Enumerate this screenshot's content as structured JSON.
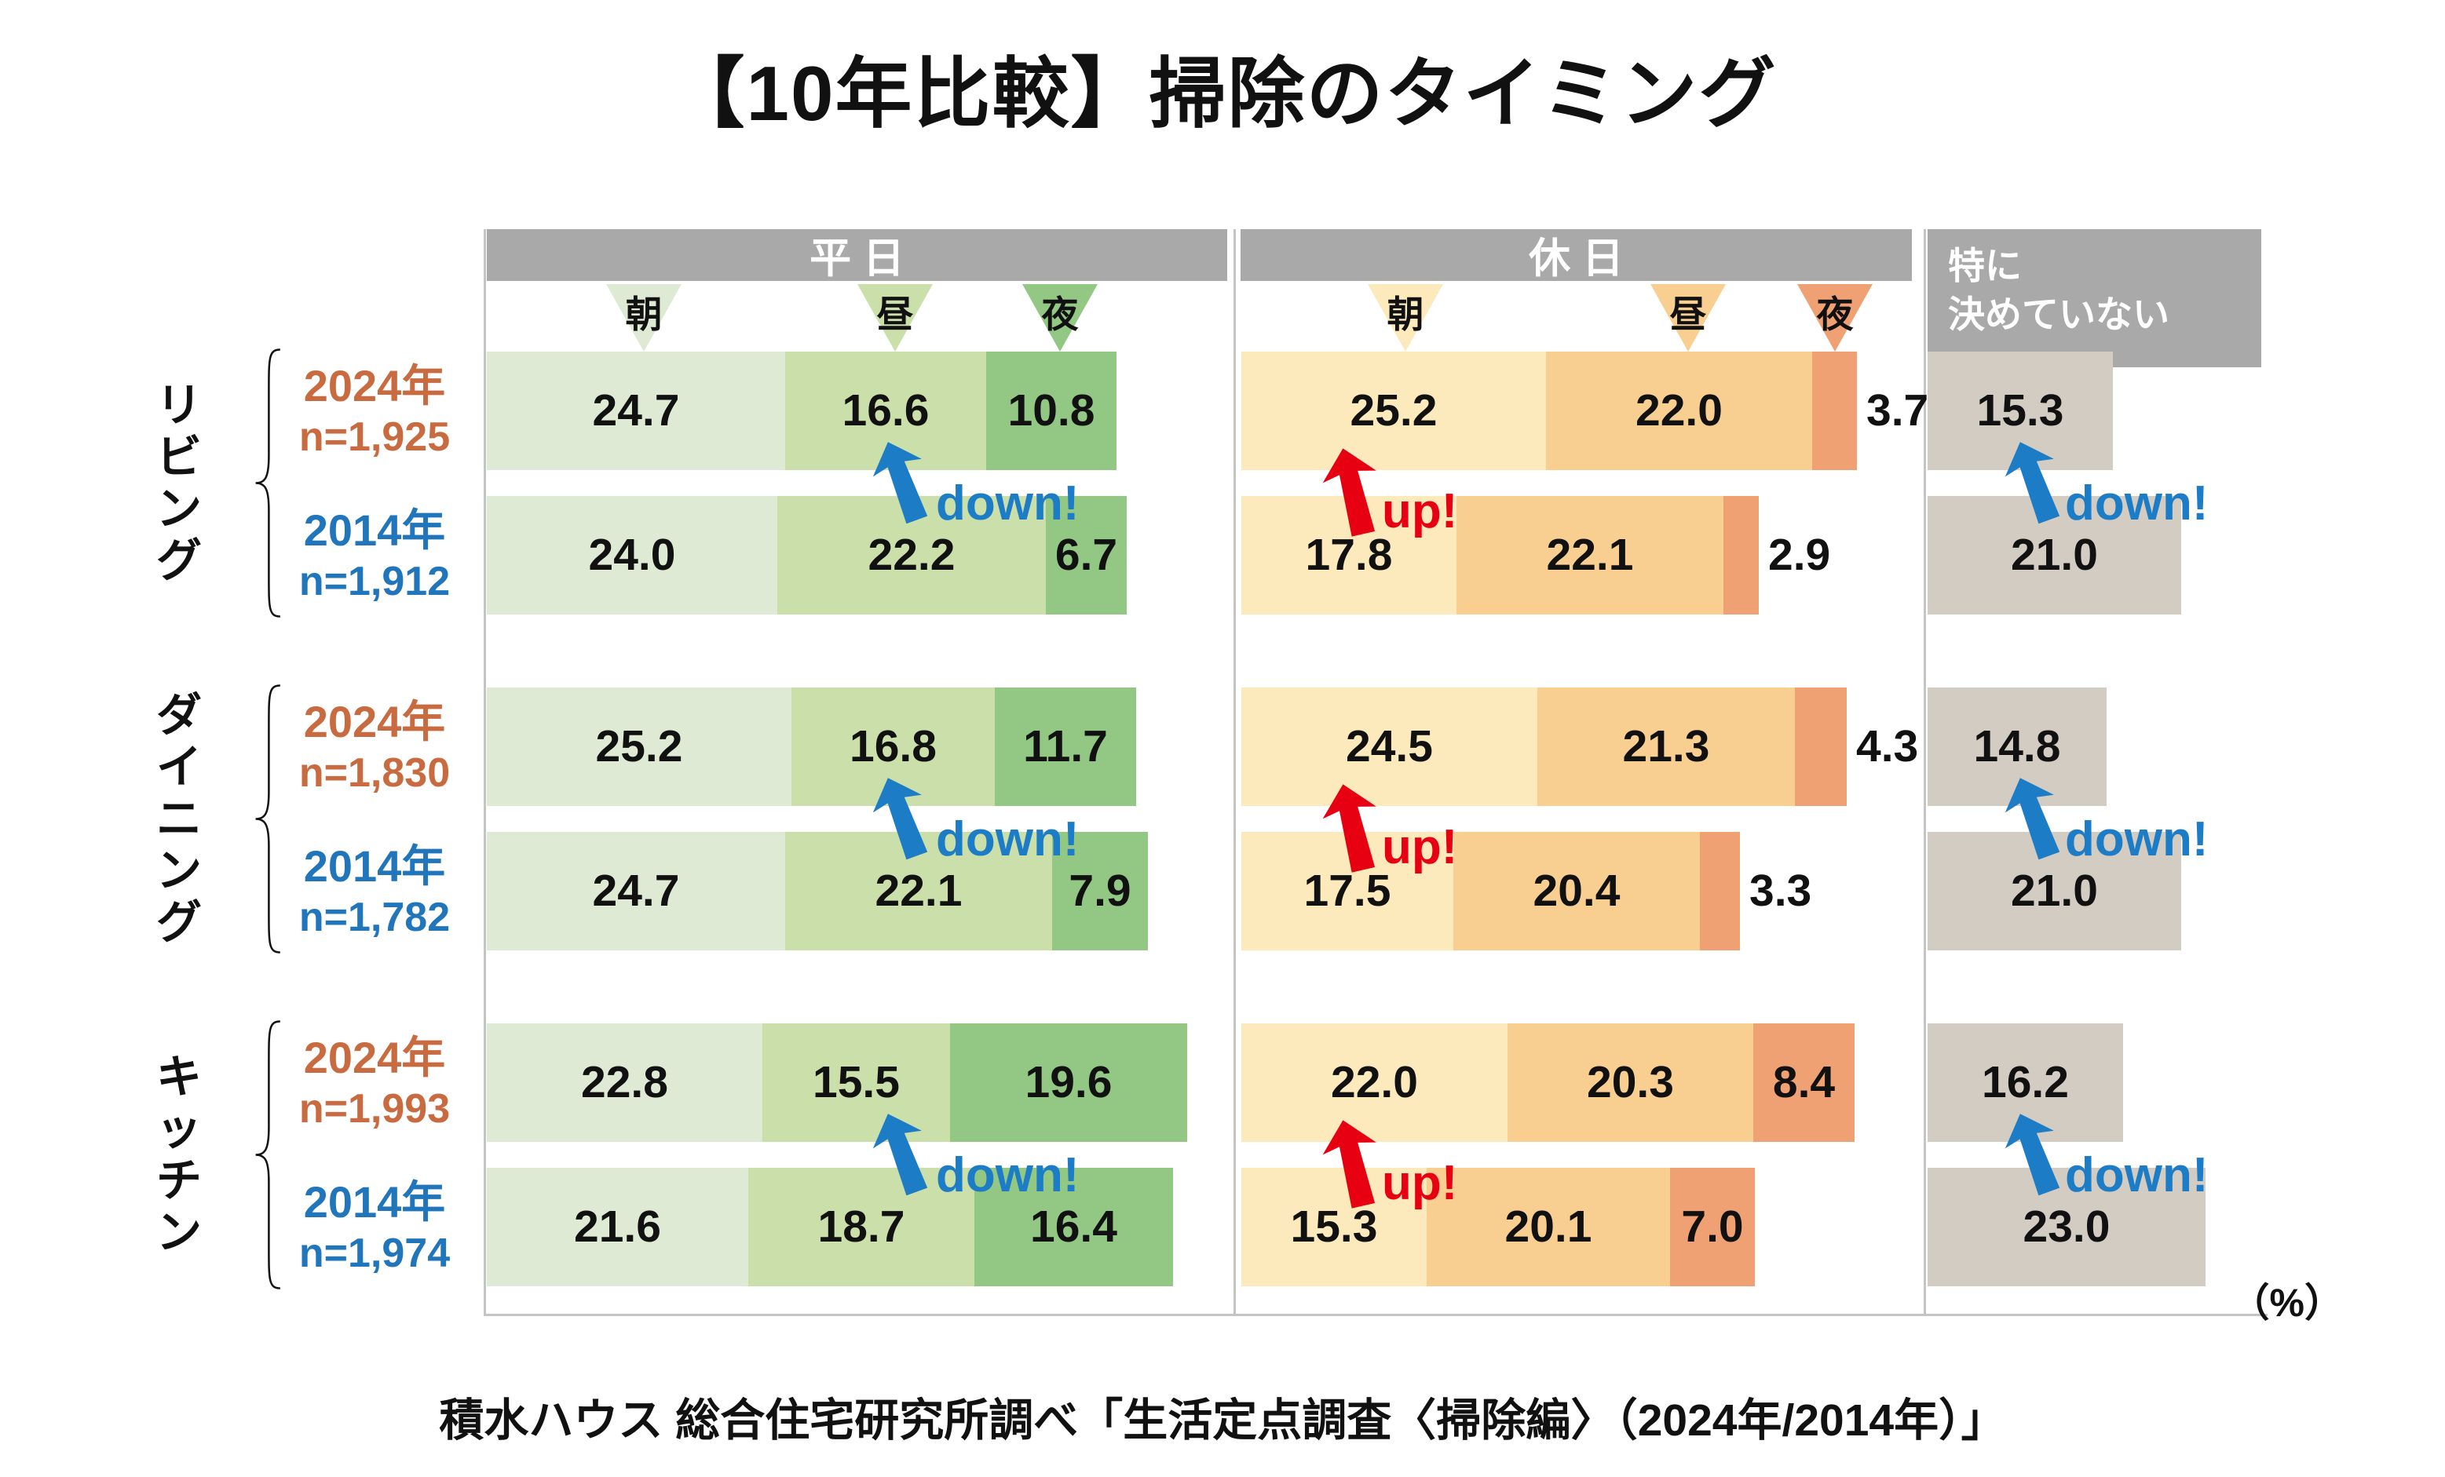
{
  "title": "【10年比較】掃除のタイミング",
  "panels": {
    "weekday": {
      "title": "平 日",
      "times": [
        "朝",
        "昼",
        "夜"
      ]
    },
    "weekend": {
      "title": "休 日",
      "times": [
        "朝",
        "昼",
        "夜"
      ]
    },
    "undecided": {
      "title": "特に\n決めていない"
    }
  },
  "annotations": {
    "weekday": "down!",
    "weekend": "up!",
    "undecided": "down!"
  },
  "unit_label": "（%）",
  "source": "積水ハウス 総合住宅研究所調べ「生活定点調査〈掃除編〉（2024年/2014年）」",
  "chart_data": {
    "type": "bar",
    "orientation": "horizontal-stacked",
    "unit": "%",
    "weekday_categories": [
      "朝",
      "昼",
      "夜"
    ],
    "weekend_categories": [
      "朝",
      "昼",
      "夜"
    ],
    "groups": [
      {
        "room": "リビング",
        "rows": [
          {
            "year": "2024年",
            "n_label": "n=1,925",
            "weekday": [
              24.7,
              16.6,
              10.8
            ],
            "weekend": [
              25.2,
              22.0,
              3.7
            ],
            "undecided": 15.3
          },
          {
            "year": "2014年",
            "n_label": "n=1,912",
            "weekday": [
              24.0,
              22.2,
              6.7
            ],
            "weekend": [
              17.8,
              22.1,
              2.9
            ],
            "undecided": 21.0
          }
        ]
      },
      {
        "room": "ダイニング",
        "rows": [
          {
            "year": "2024年",
            "n_label": "n=1,830",
            "weekday": [
              25.2,
              16.8,
              11.7
            ],
            "weekend": [
              24.5,
              21.3,
              4.3
            ],
            "undecided": 14.8
          },
          {
            "year": "2014年",
            "n_label": "n=1,782",
            "weekday": [
              24.7,
              22.1,
              7.9
            ],
            "weekend": [
              17.5,
              20.4,
              3.3
            ],
            "undecided": 21.0
          }
        ]
      },
      {
        "room": "キッチン",
        "rows": [
          {
            "year": "2024年",
            "n_label": "n=1,993",
            "weekday": [
              22.8,
              15.5,
              19.6
            ],
            "weekend": [
              22.0,
              20.3,
              8.4
            ],
            "undecided": 16.2
          },
          {
            "year": "2014年",
            "n_label": "n=1,974",
            "weekday": [
              21.6,
              18.7,
              16.4
            ],
            "weekend": [
              15.3,
              20.1,
              7.0
            ],
            "undecided": 23.0
          }
        ]
      }
    ]
  },
  "colors": {
    "weekday_segments": [
      "#dfead4",
      "#cadfa9",
      "#92c784"
    ],
    "weekend_segments": [
      "#fce9bc",
      "#f8cf90",
      "#f0a173"
    ],
    "undecided_box": "#d3ccc3",
    "header_gray": "#a9a9a9",
    "label_2024": "#c96b40",
    "label_2014": "#2176bb",
    "arrow_up_red": "#e60012",
    "arrow_down_blue": "#1d7cc6",
    "frame_line": "#c4c4c4"
  }
}
